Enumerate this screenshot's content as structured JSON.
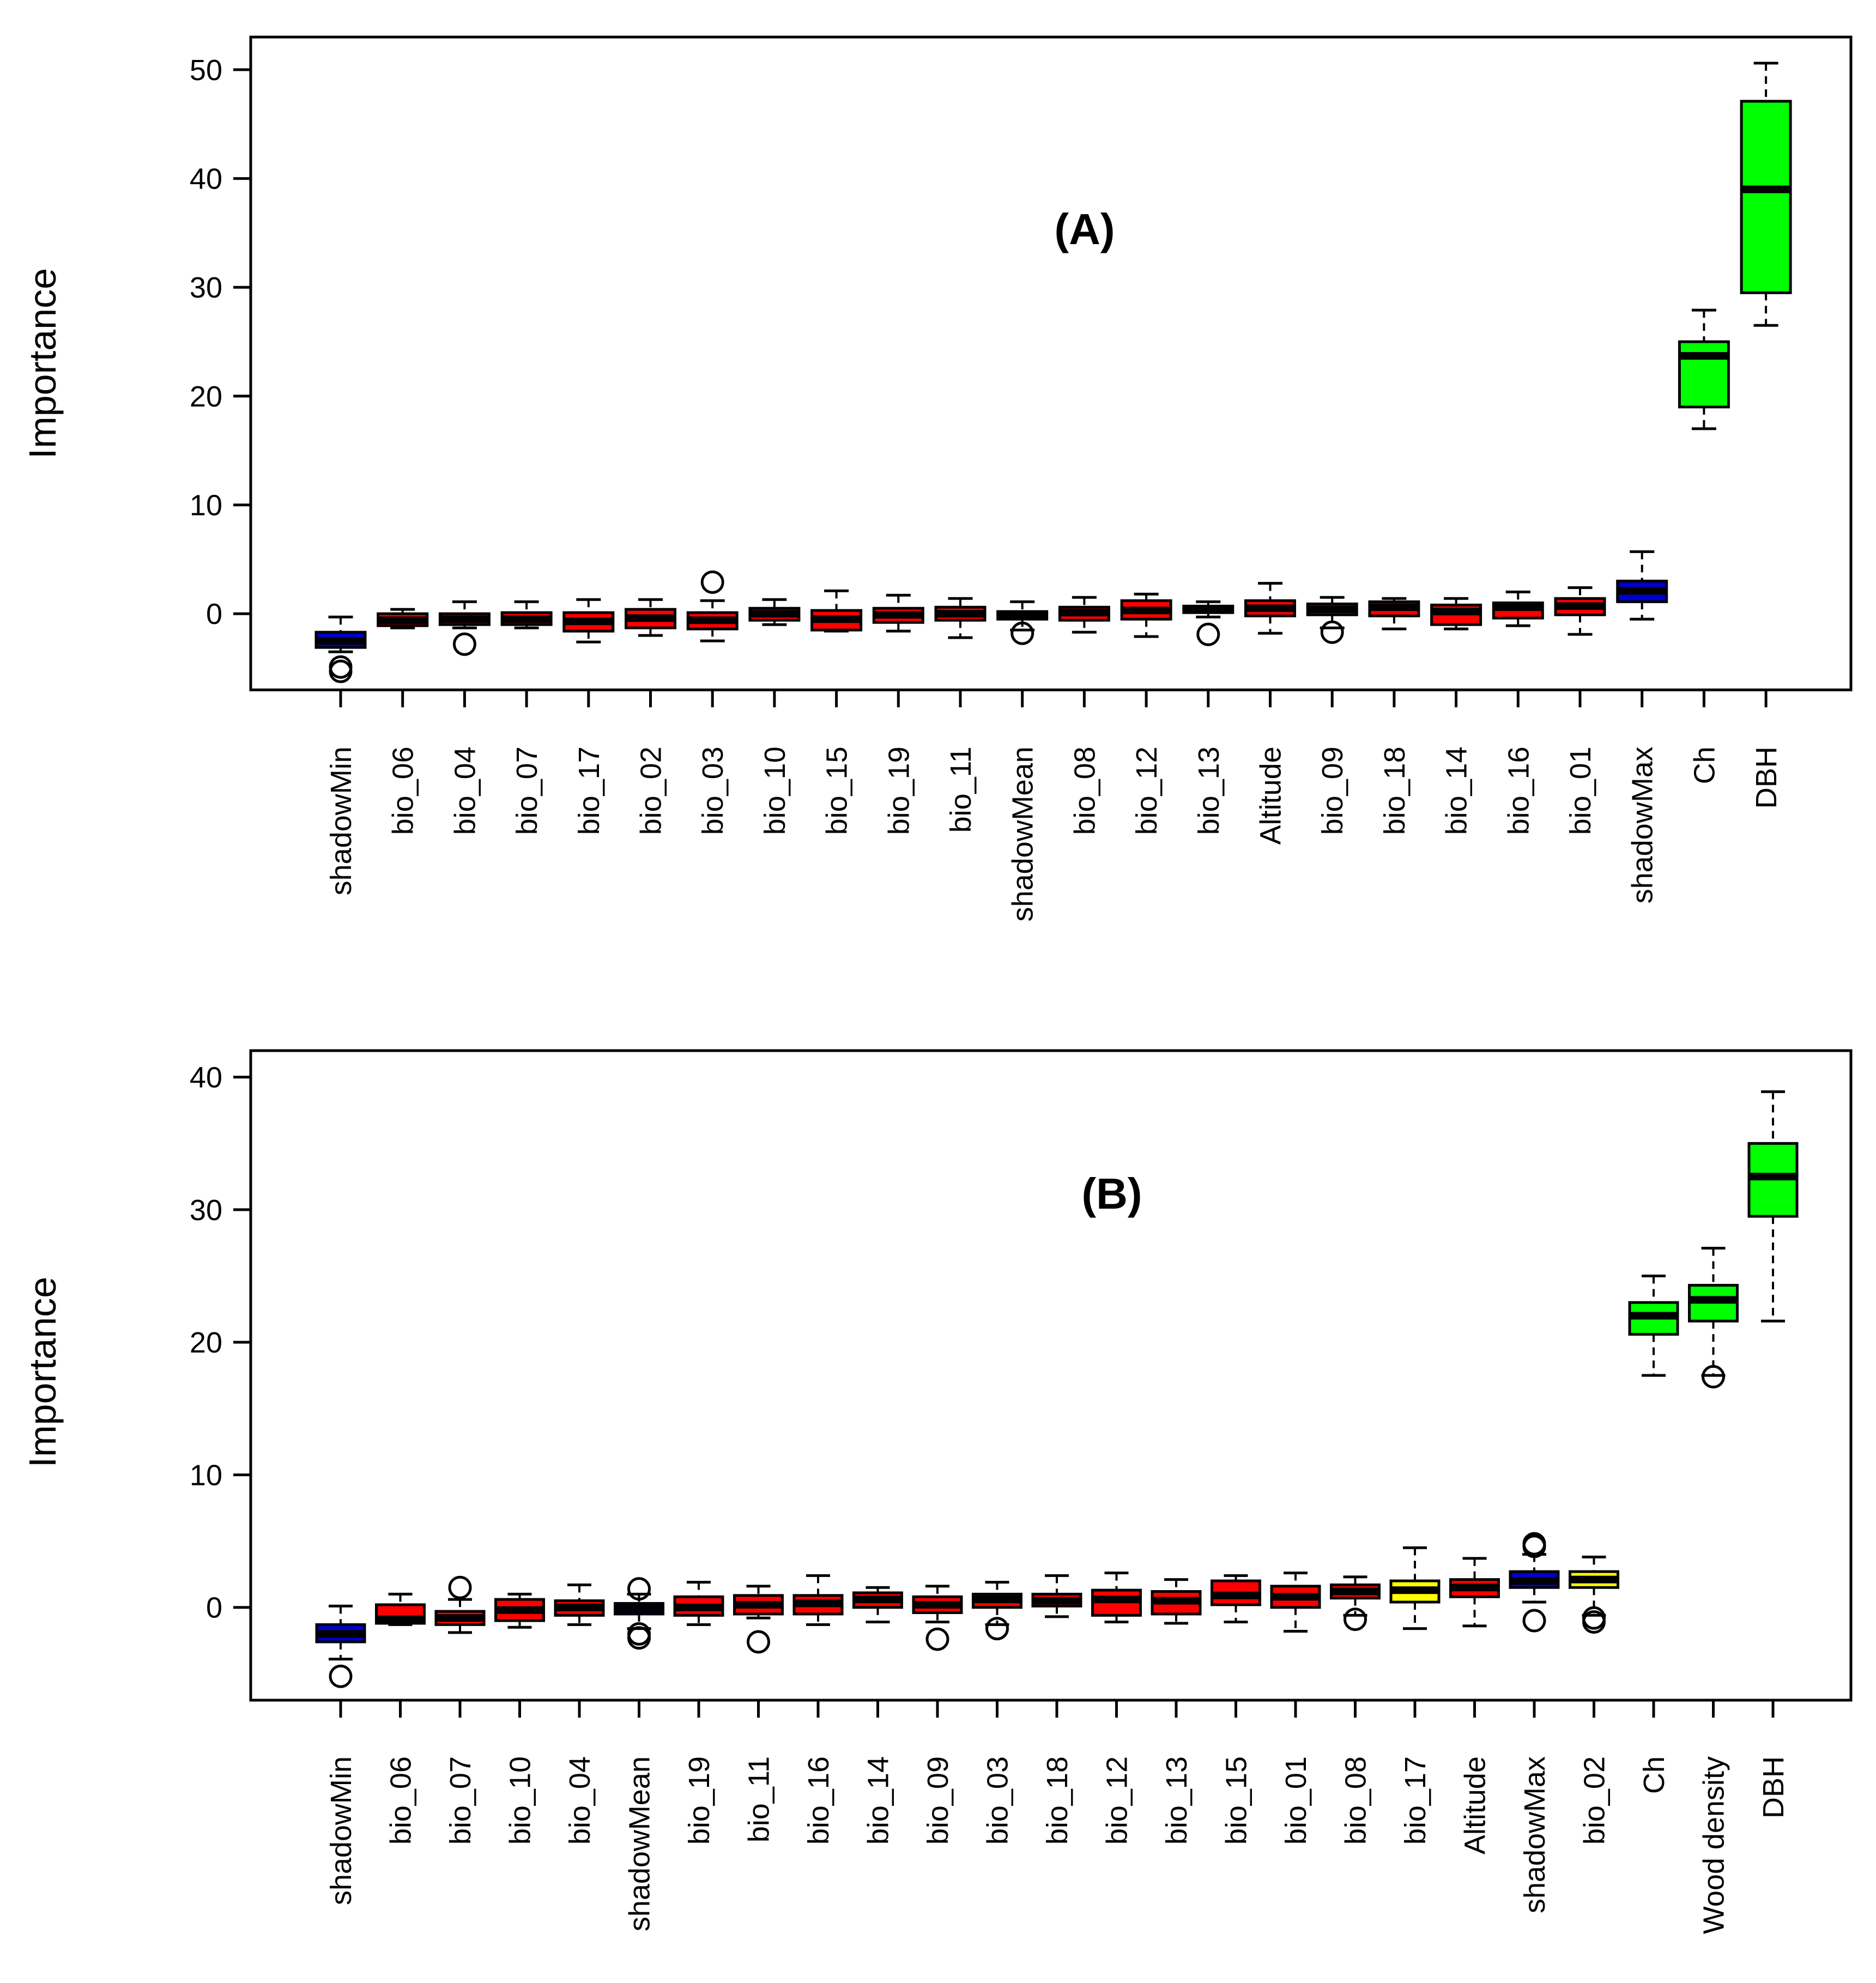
{
  "chart_data": [
    {
      "type": "boxplot",
      "panel_label": "(A)",
      "ylabel": "Importance",
      "xlabel": "",
      "ylim": [
        -7,
        53
      ],
      "yticks": [
        0,
        10,
        20,
        30,
        40,
        50
      ],
      "grid": false,
      "colors": {
        "shadow": "#0000cc",
        "rejected": "#ff0000",
        "tentative": "#ffff00",
        "confirmed": "#00ff00"
      },
      "boxes": [
        {
          "name": "shadowMin",
          "status": "shadow",
          "lower": -3.5,
          "q1": -3.1,
          "median": -2.5,
          "q3": -1.7,
          "upper": -0.3,
          "outliers": [
            -4.9,
            -5.3
          ]
        },
        {
          "name": "bio_06",
          "status": "rejected",
          "lower": -1.3,
          "q1": -1.1,
          "median": -0.6,
          "q3": 0.0,
          "upper": 0.4,
          "outliers": []
        },
        {
          "name": "bio_04",
          "status": "rejected",
          "lower": -1.3,
          "q1": -1.0,
          "median": -0.5,
          "q3": 0.0,
          "upper": 1.1,
          "outliers": [
            -2.8
          ]
        },
        {
          "name": "bio_07",
          "status": "rejected",
          "lower": -1.3,
          "q1": -1.0,
          "median": -0.5,
          "q3": 0.1,
          "upper": 1.1,
          "outliers": []
        },
        {
          "name": "bio_17",
          "status": "rejected",
          "lower": -2.6,
          "q1": -1.6,
          "median": -0.7,
          "q3": 0.1,
          "upper": 1.3,
          "outliers": []
        },
        {
          "name": "bio_02",
          "status": "rejected",
          "lower": -2.0,
          "q1": -1.3,
          "median": -0.4,
          "q3": 0.4,
          "upper": 1.3,
          "outliers": []
        },
        {
          "name": "bio_03",
          "status": "rejected",
          "lower": -2.5,
          "q1": -1.4,
          "median": -0.6,
          "q3": 0.1,
          "upper": 1.2,
          "outliers": [
            2.9
          ]
        },
        {
          "name": "bio_10",
          "status": "rejected",
          "lower": -1.0,
          "q1": -0.6,
          "median": 0.0,
          "q3": 0.5,
          "upper": 1.3,
          "outliers": []
        },
        {
          "name": "bio_15",
          "status": "rejected",
          "lower": -1.6,
          "q1": -1.5,
          "median": -0.5,
          "q3": 0.3,
          "upper": 2.1,
          "outliers": []
        },
        {
          "name": "bio_19",
          "status": "rejected",
          "lower": -1.6,
          "q1": -0.8,
          "median": -0.1,
          "q3": 0.5,
          "upper": 1.7,
          "outliers": []
        },
        {
          "name": "bio_11",
          "status": "rejected",
          "lower": -2.2,
          "q1": -0.6,
          "median": 0.0,
          "q3": 0.6,
          "upper": 1.4,
          "outliers": []
        },
        {
          "name": "shadowMean",
          "status": "shadow",
          "lower": -1.5,
          "q1": -0.5,
          "median": -0.2,
          "q3": 0.2,
          "upper": 1.1,
          "outliers": [
            -1.8
          ]
        },
        {
          "name": "bio_08",
          "status": "rejected",
          "lower": -1.7,
          "q1": -0.6,
          "median": 0.1,
          "q3": 0.6,
          "upper": 1.5,
          "outliers": []
        },
        {
          "name": "bio_12",
          "status": "rejected",
          "lower": -2.1,
          "q1": -0.5,
          "median": 0.3,
          "q3": 1.2,
          "upper": 1.8,
          "outliers": []
        },
        {
          "name": "bio_13",
          "status": "rejected",
          "lower": -0.3,
          "q1": 0.1,
          "median": 0.4,
          "q3": 0.7,
          "upper": 1.1,
          "outliers": [
            -1.9
          ]
        },
        {
          "name": "Altitude",
          "status": "rejected",
          "lower": -1.8,
          "q1": -0.2,
          "median": 0.5,
          "q3": 1.2,
          "upper": 2.8,
          "outliers": []
        },
        {
          "name": "bio_09",
          "status": "rejected",
          "lower": -1.3,
          "q1": -0.1,
          "median": 0.4,
          "q3": 0.9,
          "upper": 1.5,
          "outliers": [
            -1.7
          ]
        },
        {
          "name": "bio_18",
          "status": "rejected",
          "lower": -1.4,
          "q1": -0.2,
          "median": 0.6,
          "q3": 1.1,
          "upper": 1.4,
          "outliers": []
        },
        {
          "name": "bio_14",
          "status": "rejected",
          "lower": -1.4,
          "q1": -1.0,
          "median": 0.2,
          "q3": 0.8,
          "upper": 1.4,
          "outliers": []
        },
        {
          "name": "bio_16",
          "status": "rejected",
          "lower": -1.1,
          "q1": -0.4,
          "median": 0.6,
          "q3": 1.0,
          "upper": 2.0,
          "outliers": []
        },
        {
          "name": "bio_01",
          "status": "rejected",
          "lower": -1.9,
          "q1": -0.1,
          "median": 0.7,
          "q3": 1.4,
          "upper": 2.4,
          "outliers": []
        },
        {
          "name": "shadowMax",
          "status": "shadow",
          "lower": -0.5,
          "q1": 1.1,
          "median": 2.1,
          "q3": 3.0,
          "upper": 5.7,
          "outliers": []
        },
        {
          "name": "Ch",
          "status": "confirmed",
          "lower": 17.0,
          "q1": 19.0,
          "median": 23.7,
          "q3": 25.0,
          "upper": 27.9,
          "outliers": []
        },
        {
          "name": "DBH",
          "status": "confirmed",
          "lower": 26.5,
          "q1": 29.5,
          "median": 39.0,
          "q3": 47.1,
          "upper": 50.6,
          "outliers": []
        }
      ]
    },
    {
      "type": "boxplot",
      "panel_label": "(B)",
      "ylabel": "Importance",
      "xlabel": "",
      "ylim": [
        -7,
        42
      ],
      "yticks": [
        0,
        10,
        20,
        30,
        40
      ],
      "grid": false,
      "colors": {
        "shadow": "#0000cc",
        "rejected": "#ff0000",
        "tentative": "#ffff00",
        "confirmed": "#00ff00"
      },
      "boxes": [
        {
          "name": "shadowMin",
          "status": "shadow",
          "lower": -3.9,
          "q1": -2.6,
          "median": -2.0,
          "q3": -1.3,
          "upper": 0.1,
          "outliers": [
            -5.2
          ]
        },
        {
          "name": "bio_06",
          "status": "rejected",
          "lower": -1.3,
          "q1": -1.2,
          "median": -0.9,
          "q3": 0.2,
          "upper": 1.0,
          "outliers": []
        },
        {
          "name": "bio_07",
          "status": "rejected",
          "lower": -1.9,
          "q1": -1.3,
          "median": -0.8,
          "q3": -0.3,
          "upper": 0.6,
          "outliers": [
            1.5
          ]
        },
        {
          "name": "bio_10",
          "status": "rejected",
          "lower": -1.5,
          "q1": -1.0,
          "median": -0.2,
          "q3": 0.6,
          "upper": 1.0,
          "outliers": []
        },
        {
          "name": "bio_04",
          "status": "rejected",
          "lower": -1.3,
          "q1": -0.6,
          "median": 0.0,
          "q3": 0.5,
          "upper": 1.7,
          "outliers": []
        },
        {
          "name": "shadowMean",
          "status": "shadow",
          "lower": -1.6,
          "q1": -0.5,
          "median": -0.1,
          "q3": 0.3,
          "upper": 1.0,
          "outliers": [
            1.4,
            -2.0,
            -2.3
          ]
        },
        {
          "name": "bio_19",
          "status": "rejected",
          "lower": -1.3,
          "q1": -0.6,
          "median": 0.0,
          "q3": 0.8,
          "upper": 1.9,
          "outliers": []
        },
        {
          "name": "bio_11",
          "status": "rejected",
          "lower": -0.8,
          "q1": -0.5,
          "median": 0.2,
          "q3": 0.9,
          "upper": 1.6,
          "outliers": [
            -2.6
          ]
        },
        {
          "name": "bio_16",
          "status": "rejected",
          "lower": -1.3,
          "q1": -0.5,
          "median": 0.3,
          "q3": 0.9,
          "upper": 2.4,
          "outliers": []
        },
        {
          "name": "bio_14",
          "status": "rejected",
          "lower": -1.1,
          "q1": 0.0,
          "median": 0.6,
          "q3": 1.1,
          "upper": 1.5,
          "outliers": []
        },
        {
          "name": "bio_09",
          "status": "rejected",
          "lower": -1.1,
          "q1": -0.4,
          "median": 0.2,
          "q3": 0.8,
          "upper": 1.6,
          "outliers": [
            -2.4
          ]
        },
        {
          "name": "bio_03",
          "status": "rejected",
          "lower": -1.3,
          "q1": 0.0,
          "median": 0.6,
          "q3": 1.0,
          "upper": 1.9,
          "outliers": [
            -1.6
          ]
        },
        {
          "name": "bio_18",
          "status": "rejected",
          "lower": -0.7,
          "q1": 0.1,
          "median": 0.5,
          "q3": 1.0,
          "upper": 2.4,
          "outliers": []
        },
        {
          "name": "bio_12",
          "status": "rejected",
          "lower": -1.1,
          "q1": -0.6,
          "median": 0.6,
          "q3": 1.3,
          "upper": 2.6,
          "outliers": []
        },
        {
          "name": "bio_13",
          "status": "rejected",
          "lower": -1.2,
          "q1": -0.5,
          "median": 0.5,
          "q3": 1.2,
          "upper": 2.1,
          "outliers": []
        },
        {
          "name": "bio_15",
          "status": "rejected",
          "lower": -1.1,
          "q1": 0.2,
          "median": 0.9,
          "q3": 2.0,
          "upper": 2.4,
          "outliers": []
        },
        {
          "name": "bio_01",
          "status": "rejected",
          "lower": -1.8,
          "q1": 0.0,
          "median": 0.8,
          "q3": 1.6,
          "upper": 2.6,
          "outliers": []
        },
        {
          "name": "bio_08",
          "status": "rejected",
          "lower": -0.6,
          "q1": 0.7,
          "median": 1.2,
          "q3": 1.7,
          "upper": 2.3,
          "outliers": [
            -0.9
          ]
        },
        {
          "name": "bio_17",
          "status": "tentative",
          "lower": -1.6,
          "q1": 0.4,
          "median": 1.3,
          "q3": 2.0,
          "upper": 4.5,
          "outliers": []
        },
        {
          "name": "Altitude",
          "status": "rejected",
          "lower": -1.4,
          "q1": 0.8,
          "median": 1.5,
          "q3": 2.1,
          "upper": 3.7,
          "outliers": []
        },
        {
          "name": "shadowMax",
          "status": "shadow",
          "lower": 0.4,
          "q1": 1.5,
          "median": 2.0,
          "q3": 2.7,
          "upper": 4.0,
          "outliers": [
            4.8,
            4.6,
            -1.0
          ]
        },
        {
          "name": "bio_02",
          "status": "tentative",
          "lower": -0.6,
          "q1": 1.5,
          "median": 2.1,
          "q3": 2.7,
          "upper": 3.8,
          "outliers": [
            -0.8,
            -1.1
          ]
        },
        {
          "name": "Ch",
          "status": "confirmed",
          "lower": 17.5,
          "q1": 20.6,
          "median": 22.0,
          "q3": 23.0,
          "upper": 25.0,
          "outliers": []
        },
        {
          "name": "Wood density",
          "status": "confirmed",
          "lower": 17.5,
          "q1": 21.6,
          "median": 23.2,
          "q3": 24.3,
          "upper": 27.1,
          "outliers": [
            17.4
          ]
        },
        {
          "name": "DBH",
          "status": "confirmed",
          "lower": 21.6,
          "q1": 29.5,
          "median": 32.5,
          "q3": 35.0,
          "upper": 38.9,
          "outliers": []
        }
      ]
    }
  ]
}
